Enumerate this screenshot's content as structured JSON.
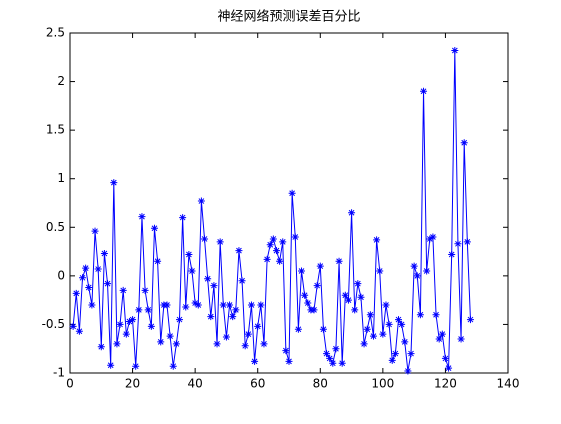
{
  "chart_data": {
    "type": "line",
    "title": "神经网络预测误差百分比",
    "x": [
      1,
      2,
      3,
      4,
      5,
      6,
      7,
      8,
      9,
      10,
      11,
      12,
      13,
      14,
      15,
      16,
      17,
      18,
      19,
      20,
      21,
      22,
      23,
      24,
      25,
      26,
      27,
      28,
      29,
      30,
      31,
      32,
      33,
      34,
      35,
      36,
      37,
      38,
      39,
      40,
      41,
      42,
      43,
      44,
      45,
      46,
      47,
      48,
      49,
      50,
      51,
      52,
      53,
      54,
      55,
      56,
      57,
      58,
      59,
      60,
      61,
      62,
      63,
      64,
      65,
      66,
      67,
      68,
      69,
      70,
      71,
      72,
      73,
      74,
      75,
      76,
      77,
      78,
      79,
      80,
      81,
      82,
      83,
      84,
      85,
      86,
      87,
      88,
      89,
      90,
      91,
      92,
      93,
      94,
      95,
      96,
      97,
      98,
      99,
      100,
      101,
      102,
      103,
      104,
      105,
      106,
      107,
      108,
      109,
      110,
      111,
      112,
      113,
      114,
      115,
      116,
      117,
      118,
      119,
      120,
      121,
      122,
      123,
      124,
      125,
      126,
      127,
      128
    ],
    "series": [
      {
        "color": "#0000ff",
        "marker": "asterisk",
        "values": [
          -0.52,
          -0.18,
          -0.57,
          -0.02,
          0.08,
          -0.12,
          -0.3,
          0.46,
          0.07,
          -0.73,
          0.23,
          -0.08,
          -0.92,
          0.96,
          -0.7,
          -0.5,
          -0.15,
          -0.6,
          -0.47,
          -0.45,
          -0.93,
          -0.35,
          0.61,
          -0.15,
          -0.35,
          -0.52,
          0.49,
          0.15,
          -0.68,
          -0.3,
          -0.3,
          -0.62,
          -0.93,
          -0.7,
          -0.45,
          0.6,
          -0.32,
          0.22,
          0.05,
          -0.28,
          -0.3,
          0.77,
          0.38,
          -0.03,
          -0.42,
          -0.1,
          -0.7,
          0.35,
          -0.3,
          -0.63,
          -0.3,
          -0.42,
          -0.35,
          0.26,
          -0.05,
          -0.72,
          -0.6,
          -0.3,
          -0.88,
          -0.52,
          -0.3,
          -0.7,
          0.17,
          0.32,
          0.38,
          0.26,
          0.15,
          0.35,
          -0.77,
          -0.88,
          0.85,
          0.4,
          -0.55,
          0.05,
          -0.2,
          -0.28,
          -0.35,
          -0.35,
          -0.1,
          0.1,
          -0.55,
          -0.8,
          -0.85,
          -0.9,
          -0.75,
          0.15,
          -0.9,
          -0.2,
          -0.25,
          0.65,
          -0.35,
          -0.08,
          -0.22,
          -0.7,
          -0.55,
          -0.4,
          -0.62,
          0.37,
          0.05,
          -0.6,
          -0.3,
          -0.5,
          -0.87,
          -0.8,
          -0.45,
          -0.5,
          -0.68,
          -0.98,
          -0.8,
          0.1,
          0.0,
          -0.4,
          1.9,
          0.05,
          0.38,
          0.4,
          -0.4,
          -0.65,
          -0.6,
          -0.85,
          -0.95,
          0.22,
          2.32,
          0.33,
          -0.65,
          1.37,
          0.35,
          -0.45
        ]
      }
    ],
    "xlim": [
      0,
      140
    ],
    "xticks": [
      0,
      20,
      40,
      60,
      80,
      100,
      120,
      140
    ],
    "ylim": [
      -1,
      2.5
    ],
    "yticks": [
      -1,
      -0.5,
      0,
      0.5,
      1,
      1.5,
      2,
      2.5
    ]
  }
}
